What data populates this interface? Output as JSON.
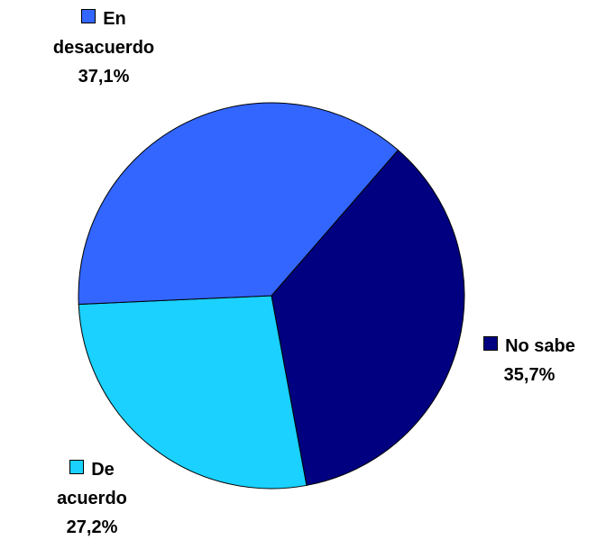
{
  "chart_data": {
    "type": "pie",
    "categories": [
      "No sabe",
      "De acuerdo",
      "En desacuerdo"
    ],
    "values": [
      35.7,
      27.2,
      37.1
    ],
    "value_labels": [
      "35,7%",
      "27,2%",
      "37,1%"
    ],
    "colors": [
      "#000080",
      "#1ad1ff",
      "#3366ff"
    ]
  }
}
